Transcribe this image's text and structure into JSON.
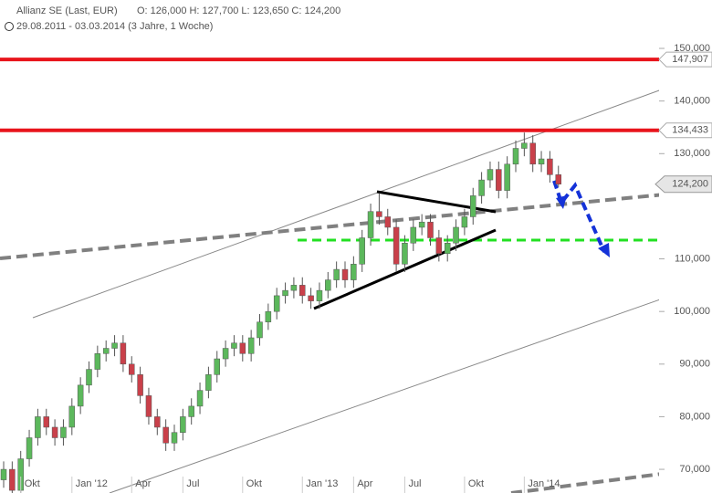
{
  "header": {
    "name": "Allianz SE (Last, EUR)",
    "ohlc": "O: 126,000  H: 127,700  L: 123,650  C: 124,200",
    "range": "29.08.2011 - 03.03.2014 (3 Jahre, 1 Woche)"
  },
  "chart_data": {
    "type": "candlestick",
    "categories": [
      null,
      null,
      "Okt",
      null,
      null,
      null,
      null,
      null,
      "Jan '12",
      null,
      null,
      null,
      null,
      null,
      null,
      "Apr",
      null,
      null,
      null,
      null,
      null,
      "Jul",
      null,
      null,
      null,
      null,
      null,
      null,
      "Okt",
      null,
      null,
      null,
      null,
      null,
      null,
      "Jan '13",
      null,
      null,
      null,
      null,
      null,
      "Apr",
      null,
      null,
      null,
      null,
      null,
      "Jul",
      null,
      null,
      null,
      null,
      null,
      null,
      "Okt",
      null,
      null,
      null,
      null,
      null,
      null,
      "Jan '14",
      null,
      null,
      null,
      null
    ],
    "open": [
      68,
      70,
      66,
      72,
      76,
      80,
      78,
      76,
      78,
      82,
      86,
      89,
      92,
      93,
      94,
      90,
      88,
      84,
      80,
      78,
      75,
      77,
      80,
      82,
      85,
      88,
      91,
      93,
      94,
      92,
      95,
      98,
      100,
      103,
      104,
      105,
      103,
      102,
      104,
      106,
      108,
      106,
      109,
      114,
      119,
      118,
      116,
      109,
      113,
      116,
      117,
      114,
      111,
      113,
      116,
      118,
      122,
      125,
      127,
      123,
      128,
      131,
      132,
      128,
      129,
      126
    ],
    "high": [
      71.5,
      71.5,
      73.5,
      77.5,
      81.5,
      81.5,
      79.5,
      79.5,
      83.5,
      87.5,
      90.5,
      93.5,
      94.5,
      95.5,
      95.5,
      91.5,
      89.5,
      85.5,
      81.5,
      79.5,
      78.5,
      81.5,
      83.5,
      86.5,
      89.5,
      92.5,
      94.5,
      95.5,
      95.5,
      96.5,
      99.5,
      101.5,
      104.5,
      105.5,
      106.5,
      106.5,
      104.5,
      105.5,
      107.5,
      109.5,
      109.5,
      110.5,
      115.5,
      120.5,
      122.5,
      119.5,
      117.5,
      114.5,
      117.5,
      118.5,
      118.5,
      115.5,
      114.5,
      117.5,
      119.5,
      123.5,
      126.5,
      128.5,
      128.5,
      129.5,
      132.5,
      134,
      133.5,
      130.5,
      130.5,
      127.7
    ],
    "low": [
      66.5,
      64.5,
      64.5,
      70.5,
      74.5,
      76.5,
      74.5,
      74.5,
      76.5,
      80.5,
      84.5,
      87.5,
      90.5,
      91.5,
      88.5,
      86.5,
      82.5,
      78.5,
      76.5,
      73.5,
      73.5,
      75.5,
      78.5,
      80.5,
      83.5,
      86.5,
      89.5,
      91.5,
      90.5,
      90.5,
      93.5,
      96.5,
      98.5,
      101.5,
      102.5,
      101.5,
      100.5,
      100.5,
      102.5,
      104.5,
      104.5,
      104.5,
      107.5,
      112.5,
      116.5,
      114.5,
      107.5,
      107.5,
      111.5,
      114.5,
      112.5,
      109.5,
      109.5,
      111.5,
      114.5,
      116.5,
      120.5,
      123.5,
      121.5,
      121.5,
      126.5,
      129.5,
      126.5,
      126.5,
      124.5,
      123.65
    ],
    "close": [
      70,
      66,
      72,
      76,
      80,
      78,
      76,
      78,
      82,
      86,
      89,
      92,
      93,
      94,
      90,
      88,
      84,
      80,
      78,
      75,
      77,
      80,
      82,
      85,
      88,
      91,
      93,
      94,
      92,
      95,
      98,
      100,
      103,
      104,
      105,
      103,
      102,
      104,
      106,
      108,
      106,
      109,
      114,
      119,
      118,
      116,
      109,
      113,
      116,
      117,
      114,
      111,
      113,
      116,
      118,
      122,
      125,
      127,
      123,
      128,
      131,
      132,
      128,
      129,
      126,
      124.2
    ],
    "up_color": "#5cb85c",
    "down_color": "#c9404a",
    "ylim": [
      65.5,
      159.2
    ],
    "yticks": [
      {
        "value": 70,
        "label": "70,000"
      },
      {
        "value": 80,
        "label": "80,000"
      },
      {
        "value": 90,
        "label": "90,000"
      },
      {
        "value": 100,
        "label": "100,000"
      },
      {
        "value": 110,
        "label": "110,000"
      },
      {
        "value": 130,
        "label": "130,000"
      },
      {
        "value": 140,
        "label": "140,000"
      },
      {
        "value": 150,
        "label": "150,000"
      }
    ],
    "levels": [
      {
        "value": 147.907,
        "label": "147,907",
        "color": "#e8141c"
      },
      {
        "value": 134.433,
        "label": "134,433",
        "color": "#e8141c"
      }
    ],
    "last": {
      "value": 124.2,
      "label": "124,200"
    }
  }
}
